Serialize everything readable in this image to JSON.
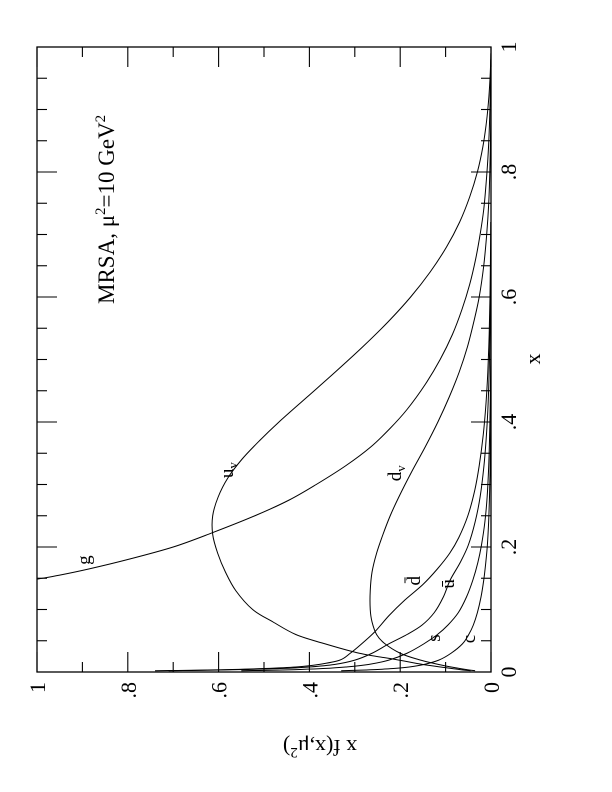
{
  "colors": {
    "foreground": "#000000",
    "background": "#ffffff"
  },
  "figure": {
    "title": {
      "pre": "MRSA, μ",
      "sup1": "2",
      "mid": "=10 GeV",
      "sup2": "2"
    },
    "xlabel": "x",
    "ylabel": {
      "pre": "x f(x,μ",
      "sup": "2",
      "post": ")"
    }
  },
  "chart_data": {
    "type": "line",
    "title": "MRSA, μ²=10 GeV²",
    "xlabel": "x",
    "ylabel": "x f(x,μ²)",
    "xlim": [
      0,
      1
    ],
    "ylim": [
      0,
      1
    ],
    "grid": false,
    "legend_position": "labels-on-curves",
    "x_tick_values": [
      0,
      0.2,
      0.4,
      0.6,
      0.8,
      1
    ],
    "x_tick_labels": [
      "0",
      ".2",
      ".4",
      ".6",
      ".8",
      "1"
    ],
    "x_minor_step": 0.05,
    "y_tick_values": [
      0,
      0.2,
      0.4,
      0.6,
      0.8,
      1
    ],
    "y_tick_labels": [
      "0",
      ".2",
      ".4",
      ".6",
      ".8",
      "1"
    ],
    "y_minor_step": 0.1,
    "series": [
      {
        "name": "gluon",
        "label": {
          "t": "g"
        },
        "label_at": [
          0.179,
          0.883
        ],
        "points": [
          [
            0.1485,
            1.0
          ],
          [
            0.155,
            0.95
          ],
          [
            0.165,
            0.885
          ],
          [
            0.18,
            0.8
          ],
          [
            0.2,
            0.7
          ],
          [
            0.2225,
            0.615
          ],
          [
            0.25,
            0.52
          ],
          [
            0.275,
            0.445
          ],
          [
            0.3,
            0.385
          ],
          [
            0.33,
            0.32
          ],
          [
            0.36,
            0.265
          ],
          [
            0.39,
            0.222
          ],
          [
            0.42,
            0.185
          ],
          [
            0.46,
            0.145
          ],
          [
            0.5,
            0.112
          ],
          [
            0.54,
            0.085
          ],
          [
            0.58,
            0.064
          ],
          [
            0.62,
            0.047
          ],
          [
            0.66,
            0.034
          ],
          [
            0.7,
            0.024
          ],
          [
            0.74,
            0.016
          ],
          [
            0.78,
            0.011
          ],
          [
            0.82,
            0.007
          ],
          [
            0.86,
            0.0042
          ],
          [
            0.9,
            0.0024
          ],
          [
            0.94,
            0.0012
          ],
          [
            0.98,
            0.0005
          ]
        ]
      },
      {
        "name": "u-valence",
        "label": {
          "t": "u",
          "sub": "v"
        },
        "label_at": [
          0.323,
          0.568
        ],
        "points": [
          [
            0.002,
            0.045
          ],
          [
            0.004,
            0.07
          ],
          [
            0.007,
            0.1
          ],
          [
            0.012,
            0.15
          ],
          [
            0.02,
            0.21
          ],
          [
            0.03,
            0.29
          ],
          [
            0.046,
            0.37
          ],
          [
            0.06,
            0.43
          ],
          [
            0.08,
            0.48
          ],
          [
            0.1,
            0.525
          ],
          [
            0.13,
            0.562
          ],
          [
            0.16,
            0.585
          ],
          [
            0.19,
            0.602
          ],
          [
            0.22,
            0.613
          ],
          [
            0.25,
            0.613
          ],
          [
            0.28,
            0.601
          ],
          [
            0.31,
            0.58
          ],
          [
            0.34,
            0.549
          ],
          [
            0.37,
            0.51
          ],
          [
            0.4,
            0.467
          ],
          [
            0.44,
            0.405
          ],
          [
            0.48,
            0.343
          ],
          [
            0.52,
            0.283
          ],
          [
            0.56,
            0.227
          ],
          [
            0.6,
            0.177
          ],
          [
            0.64,
            0.134
          ],
          [
            0.68,
            0.098
          ],
          [
            0.72,
            0.069
          ],
          [
            0.76,
            0.047
          ],
          [
            0.8,
            0.03
          ],
          [
            0.84,
            0.018
          ],
          [
            0.88,
            0.01
          ],
          [
            0.92,
            0.0047
          ],
          [
            0.96,
            0.0015
          ],
          [
            0.99,
            0.0003
          ]
        ]
      },
      {
        "name": "d-valence",
        "label": {
          "t": "d",
          "sub": "v"
        },
        "label_at": [
          0.318,
          0.198
        ],
        "points": [
          [
            0.002,
            0.035
          ],
          [
            0.004,
            0.055
          ],
          [
            0.007,
            0.08
          ],
          [
            0.012,
            0.115
          ],
          [
            0.02,
            0.16
          ],
          [
            0.03,
            0.2
          ],
          [
            0.046,
            0.235
          ],
          [
            0.06,
            0.252
          ],
          [
            0.08,
            0.262
          ],
          [
            0.1,
            0.266
          ],
          [
            0.13,
            0.266
          ],
          [
            0.16,
            0.262
          ],
          [
            0.19,
            0.252
          ],
          [
            0.22,
            0.238
          ],
          [
            0.25,
            0.222
          ],
          [
            0.28,
            0.203
          ],
          [
            0.32,
            0.175
          ],
          [
            0.36,
            0.145
          ],
          [
            0.4,
            0.117
          ],
          [
            0.44,
            0.092
          ],
          [
            0.48,
            0.07
          ],
          [
            0.52,
            0.052
          ],
          [
            0.56,
            0.038
          ],
          [
            0.6,
            0.026
          ],
          [
            0.65,
            0.016
          ],
          [
            0.7,
            0.0095
          ],
          [
            0.75,
            0.005
          ],
          [
            0.8,
            0.0026
          ],
          [
            0.85,
            0.0012
          ],
          [
            0.9,
            0.0004
          ]
        ]
      },
      {
        "name": "dbar",
        "label": {
          "t": "d̄"
        },
        "label_at": [
          0.146,
          0.156
        ],
        "points": [
          [
            0.002,
            0.74
          ],
          [
            0.0025,
            0.69
          ],
          [
            0.003,
            0.64
          ],
          [
            0.004,
            0.57
          ],
          [
            0.0055,
            0.5
          ],
          [
            0.008,
            0.43
          ],
          [
            0.012,
            0.38
          ],
          [
            0.019,
            0.333
          ],
          [
            0.03,
            0.31
          ],
          [
            0.045,
            0.285
          ],
          [
            0.065,
            0.255
          ],
          [
            0.09,
            0.225
          ],
          [
            0.115,
            0.19
          ],
          [
            0.14,
            0.15
          ],
          [
            0.165,
            0.118
          ],
          [
            0.19,
            0.091
          ],
          [
            0.215,
            0.071
          ],
          [
            0.25,
            0.051
          ],
          [
            0.29,
            0.036
          ],
          [
            0.33,
            0.026
          ],
          [
            0.38,
            0.017
          ],
          [
            0.43,
            0.011
          ],
          [
            0.48,
            0.007
          ],
          [
            0.54,
            0.004
          ],
          [
            0.6,
            0.0022
          ],
          [
            0.66,
            0.0012
          ],
          [
            0.72,
            0.0006
          ]
        ]
      },
      {
        "name": "ubar",
        "label": {
          "t": "ū"
        },
        "label_at": [
          0.141,
          0.0815
        ],
        "points": [
          [
            0.002,
            0.71
          ],
          [
            0.0025,
            0.66
          ],
          [
            0.003,
            0.61
          ],
          [
            0.004,
            0.54
          ],
          [
            0.0055,
            0.465
          ],
          [
            0.008,
            0.4
          ],
          [
            0.012,
            0.345
          ],
          [
            0.019,
            0.3
          ],
          [
            0.03,
            0.262
          ],
          [
            0.045,
            0.225
          ],
          [
            0.06,
            0.185
          ],
          [
            0.075,
            0.152
          ],
          [
            0.095,
            0.125
          ],
          [
            0.12,
            0.105
          ],
          [
            0.147,
            0.09
          ],
          [
            0.175,
            0.068
          ],
          [
            0.203,
            0.05
          ],
          [
            0.24,
            0.035
          ],
          [
            0.28,
            0.024
          ],
          [
            0.33,
            0.0155
          ],
          [
            0.38,
            0.01
          ],
          [
            0.43,
            0.0063
          ],
          [
            0.49,
            0.0037
          ],
          [
            0.55,
            0.002
          ],
          [
            0.61,
            0.001
          ],
          [
            0.67,
            0.0005
          ]
        ]
      },
      {
        "name": "strange",
        "label": {
          "t": "s"
        },
        "label_at": [
          0.0544,
          0.112
        ],
        "points": [
          [
            0.002,
            0.55
          ],
          [
            0.0025,
            0.51
          ],
          [
            0.003,
            0.47
          ],
          [
            0.004,
            0.42
          ],
          [
            0.0055,
            0.37
          ],
          [
            0.008,
            0.32
          ],
          [
            0.012,
            0.27
          ],
          [
            0.019,
            0.225
          ],
          [
            0.03,
            0.185
          ],
          [
            0.045,
            0.148
          ],
          [
            0.06,
            0.118
          ],
          [
            0.075,
            0.095
          ],
          [
            0.095,
            0.072
          ],
          [
            0.12,
            0.054
          ],
          [
            0.147,
            0.04
          ],
          [
            0.175,
            0.029
          ],
          [
            0.203,
            0.021
          ],
          [
            0.24,
            0.0135
          ],
          [
            0.28,
            0.0085
          ],
          [
            0.33,
            0.005
          ],
          [
            0.38,
            0.003
          ],
          [
            0.43,
            0.0017
          ],
          [
            0.49,
            0.0008
          ],
          [
            0.55,
            0.0003
          ]
        ]
      },
      {
        "name": "charm",
        "label": {
          "t": "c"
        },
        "label_at": [
          0.0528,
          0.035
        ],
        "points": [
          [
            0.002,
            0.33
          ],
          [
            0.003,
            0.285
          ],
          [
            0.004,
            0.25
          ],
          [
            0.0055,
            0.215
          ],
          [
            0.008,
            0.18
          ],
          [
            0.012,
            0.148
          ],
          [
            0.019,
            0.115
          ],
          [
            0.03,
            0.088
          ],
          [
            0.045,
            0.063
          ],
          [
            0.06,
            0.049
          ],
          [
            0.075,
            0.039
          ],
          [
            0.095,
            0.03
          ],
          [
            0.12,
            0.022
          ],
          [
            0.147,
            0.016
          ],
          [
            0.175,
            0.0115
          ],
          [
            0.203,
            0.008
          ],
          [
            0.24,
            0.0052
          ],
          [
            0.28,
            0.0033
          ],
          [
            0.33,
            0.0018
          ],
          [
            0.38,
            0.001
          ],
          [
            0.43,
            0.0005
          ],
          [
            0.49,
            0.0002
          ]
        ]
      }
    ]
  }
}
